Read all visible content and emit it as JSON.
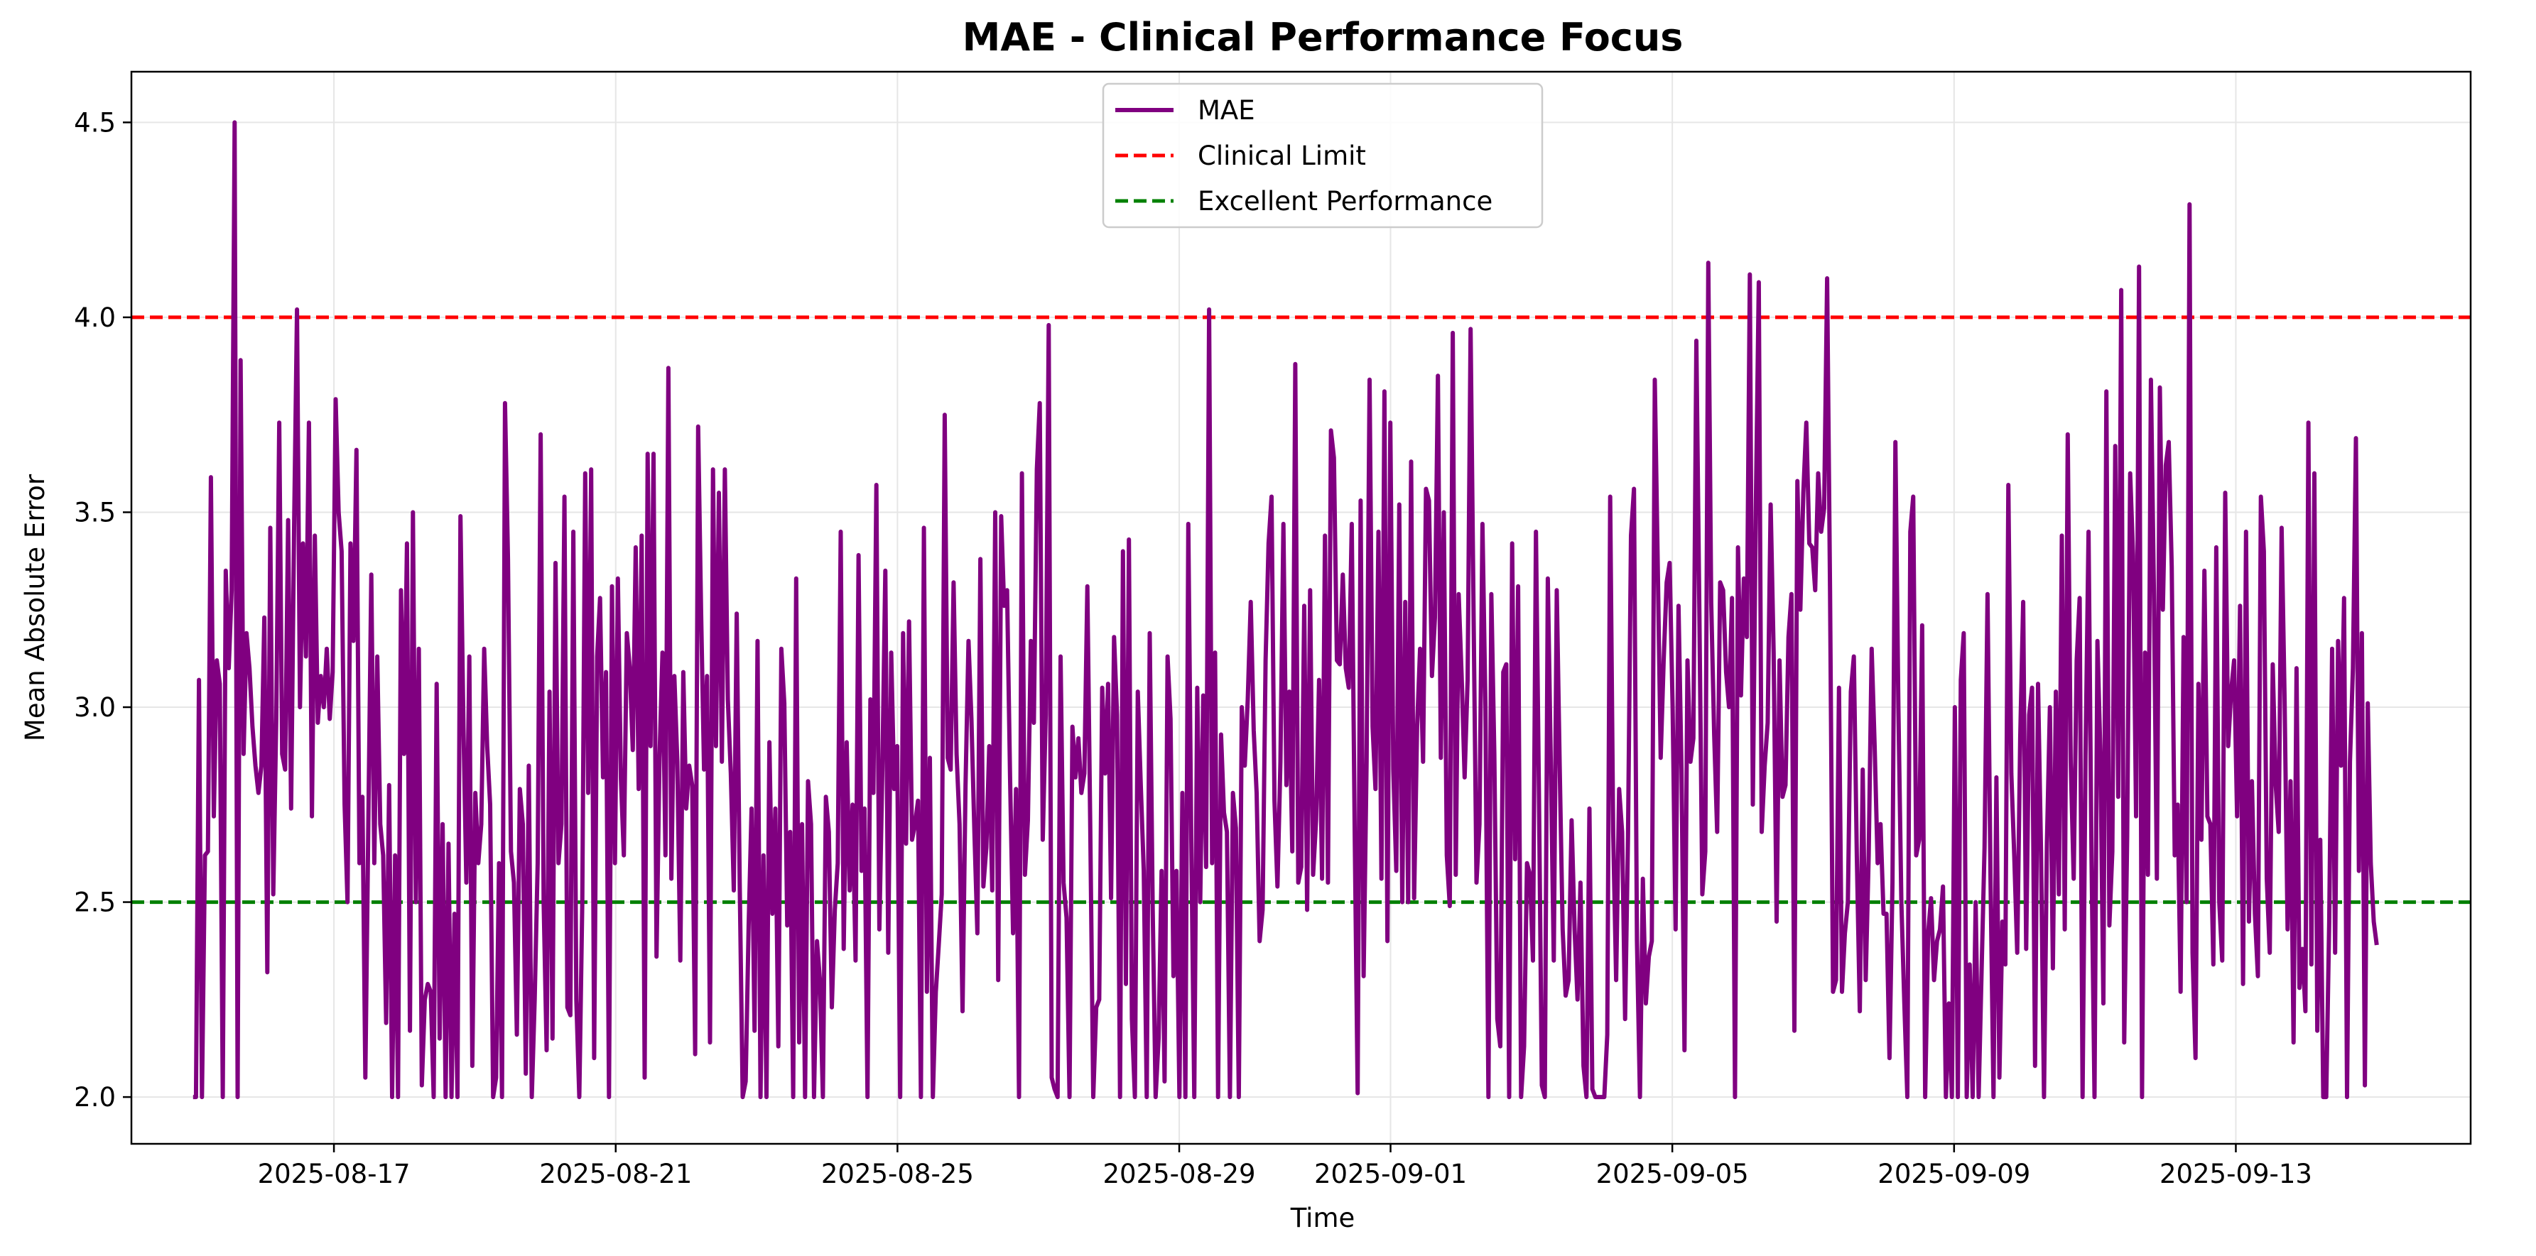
{
  "chart_data": {
    "type": "line",
    "title": "MAE - Clinical Performance Focus",
    "xlabel": "Time",
    "ylabel": "Mean Absolute Error",
    "x_start": "2025-08-15",
    "x_end": "2025-09-15",
    "xlim": [
      "2025-08-14T03:00",
      "2025-09-16T08:00"
    ],
    "ylim": [
      1.88,
      4.63
    ],
    "x_ticks": [
      "2025-08-17",
      "2025-08-21",
      "2025-08-25",
      "2025-08-29",
      "2025-09-01",
      "2025-09-05",
      "2025-09-09",
      "2025-09-13"
    ],
    "y_ticks": [
      "2.0",
      "2.5",
      "3.0",
      "3.5",
      "4.0",
      "4.5"
    ],
    "grid": true,
    "legend_position": "top-center",
    "colors": {
      "mae": "#800080",
      "clinical_limit": "#ff0000",
      "excellent": "#008000"
    },
    "series": [
      {
        "name": "MAE",
        "style": "solid",
        "values": [
          2.0,
          2.0,
          3.07,
          2.0,
          2.62,
          2.63,
          3.59,
          2.72,
          3.12,
          3.06,
          2.0,
          3.35,
          3.1,
          3.3,
          4.5,
          2.0,
          3.89,
          2.88,
          3.19,
          3.1,
          2.95,
          2.85,
          2.78,
          2.85,
          3.23,
          2.32,
          3.46,
          2.52,
          2.97,
          3.73,
          2.88,
          2.84,
          3.48,
          2.74,
          3.46,
          4.02,
          3.0,
          3.42,
          3.13,
          3.73,
          2.72,
          3.44,
          2.96,
          3.08,
          3.0,
          3.15,
          2.97,
          3.09,
          3.79,
          3.5,
          3.4,
          2.75,
          2.5,
          3.42,
          3.17,
          3.66,
          2.6,
          2.77,
          2.05,
          2.7,
          3.34,
          2.6,
          3.13,
          2.7,
          2.62,
          2.19,
          2.8,
          2.0,
          2.62,
          2.0,
          3.3,
          2.88,
          3.42,
          2.17,
          3.5,
          2.5,
          3.15,
          2.03,
          2.25,
          2.29,
          2.27,
          2.0,
          3.06,
          2.15,
          2.7,
          2.0,
          2.65,
          2.0,
          2.47,
          2.0,
          3.49,
          2.95,
          2.55,
          3.13,
          2.08,
          2.78,
          2.6,
          2.7,
          3.15,
          2.9,
          2.75,
          2.0,
          2.05,
          2.6,
          2.0,
          3.78,
          3.38,
          2.63,
          2.55,
          2.16,
          2.79,
          2.7,
          2.06,
          2.85,
          2.0,
          2.25,
          2.6,
          3.7,
          2.5,
          2.12,
          3.04,
          2.15,
          3.37,
          2.6,
          2.7,
          3.54,
          2.23,
          2.21,
          3.45,
          2.25,
          2.0,
          2.5,
          3.6,
          2.78,
          3.61,
          2.1,
          3.13,
          3.28,
          2.82,
          3.09,
          2.0,
          3.31,
          2.6,
          3.33,
          2.82,
          2.62,
          3.19,
          3.1,
          2.89,
          3.41,
          2.79,
          3.44,
          2.05,
          3.65,
          2.9,
          3.65,
          2.36,
          2.87,
          3.14,
          2.62,
          3.87,
          2.56,
          3.08,
          2.86,
          2.35,
          3.09,
          2.74,
          2.85,
          2.8,
          2.11,
          3.72,
          3.25,
          2.84,
          3.08,
          2.14,
          3.61,
          2.9,
          3.55,
          2.86,
          3.61,
          3.02,
          2.83,
          2.53,
          3.24,
          2.55,
          2.0,
          2.04,
          2.44,
          2.74,
          2.17,
          3.17,
          2.0,
          2.62,
          2.0,
          2.91,
          2.47,
          2.74,
          2.13,
          3.15,
          3.01,
          2.44,
          2.68,
          2.0,
          3.33,
          2.14,
          2.7,
          2.0,
          2.81,
          2.7,
          2.0,
          2.4,
          2.3,
          2.0,
          2.77,
          2.68,
          2.23,
          2.48,
          2.6,
          3.45,
          2.38,
          2.91,
          2.53,
          2.75,
          2.35,
          3.39,
          2.58,
          2.74,
          2.0,
          3.02,
          2.78,
          3.57,
          2.43,
          2.84,
          3.35,
          2.37,
          3.14,
          2.79,
          2.9,
          2.0,
          3.19,
          2.65,
          3.22,
          2.66,
          2.7,
          2.76,
          2.0,
          3.46,
          2.27,
          2.87,
          2.0,
          2.27,
          2.39,
          2.52,
          3.75,
          2.87,
          2.84,
          3.32,
          2.88,
          2.7,
          2.22,
          2.8,
          3.17,
          2.97,
          2.68,
          2.42,
          3.38,
          2.54,
          2.64,
          2.9,
          2.53,
          3.5,
          2.3,
          3.49,
          3.26,
          3.3,
          2.82,
          2.42,
          2.79,
          2.0,
          3.6,
          2.57,
          2.71,
          3.17,
          2.96,
          3.61,
          3.78,
          2.66,
          2.98,
          3.98,
          2.05,
          2.02,
          2.0,
          3.13,
          2.55,
          2.46,
          2.0,
          2.95,
          2.82,
          2.92,
          2.78,
          2.83,
          3.31,
          2.69,
          2.0,
          2.23,
          2.25,
          3.05,
          2.83,
          3.06,
          2.51,
          3.18,
          2.98,
          2.0,
          3.4,
          2.29,
          3.43,
          2.2,
          2.0,
          3.04,
          2.8,
          2.58,
          2.0,
          3.19,
          2.48,
          2.0,
          2.15,
          2.58,
          2.04,
          3.13,
          2.97,
          2.31,
          2.58,
          2.0,
          2.78,
          2.0,
          3.47,
          2.66,
          2.0,
          3.05,
          2.5,
          3.03,
          2.59,
          4.02,
          2.6,
          3.14,
          2.0,
          2.93,
          2.73,
          2.68,
          2.0,
          2.78,
          2.69,
          2.0,
          3.0,
          2.85,
          3.02,
          3.27,
          2.94,
          2.78,
          2.4,
          2.48,
          3.12,
          3.42,
          3.54,
          2.76,
          2.54,
          2.86,
          3.47,
          2.8,
          3.04,
          2.63,
          3.88,
          2.55,
          2.59,
          3.26,
          2.48,
          3.3,
          2.57,
          2.71,
          3.07,
          2.56,
          3.44,
          2.55,
          3.71,
          3.64,
          3.12,
          3.11,
          3.34,
          3.1,
          3.05,
          3.47,
          2.67,
          2.01,
          3.53,
          2.31,
          2.86,
          3.84,
          2.95,
          2.79,
          3.45,
          2.56,
          3.81,
          2.4,
          3.73,
          2.84,
          2.58,
          3.52,
          2.5,
          3.27,
          2.5,
          3.63,
          2.51,
          2.95,
          3.15,
          2.86,
          3.56,
          3.53,
          3.08,
          3.23,
          3.85,
          2.87,
          3.5,
          2.62,
          2.49,
          3.96,
          2.57,
          3.29,
          3.08,
          2.82,
          3.07,
          3.97,
          3.24,
          2.55,
          2.7,
          3.47,
          3.0,
          2.0,
          3.29,
          2.88,
          2.2,
          2.13,
          3.09,
          3.11,
          2.0,
          3.42,
          2.61,
          3.31,
          2.0,
          2.13,
          2.6,
          2.57,
          2.35,
          3.45,
          2.78,
          2.03,
          2.0,
          3.33,
          2.86,
          2.35,
          3.3,
          2.85,
          2.43,
          2.26,
          2.3,
          2.71,
          2.43,
          2.25,
          2.55,
          2.08,
          2.0,
          2.74,
          2.02,
          2.0,
          2.0,
          2.0,
          2.0,
          2.16,
          3.54,
          2.68,
          2.3,
          2.79,
          2.68,
          2.2,
          2.67,
          3.44,
          3.56,
          2.4,
          2.0,
          2.56,
          2.24,
          2.36,
          2.4,
          3.84,
          3.36,
          2.87,
          3.12,
          3.32,
          3.37,
          3.0,
          2.43,
          3.26,
          2.84,
          2.12,
          3.12,
          2.86,
          2.92,
          3.94,
          3.25,
          2.52,
          2.63,
          4.14,
          3.27,
          2.93,
          2.68,
          3.32,
          3.3,
          3.09,
          3.0,
          3.28,
          2.0,
          3.41,
          3.03,
          3.33,
          3.18,
          4.11,
          2.75,
          3.51,
          4.09,
          2.68,
          2.85,
          2.96,
          3.52,
          3.14,
          2.45,
          3.12,
          2.77,
          2.8,
          3.18,
          3.29,
          2.17,
          3.58,
          3.25,
          3.55,
          3.73,
          3.42,
          3.41,
          3.3,
          3.6,
          3.45,
          3.51,
          4.1,
          3.3,
          2.27,
          2.3,
          3.05,
          2.27,
          2.42,
          2.5,
          3.04,
          3.13,
          2.62,
          2.22,
          2.84,
          2.3,
          2.62,
          3.15,
          2.9,
          2.6,
          2.7,
          2.47,
          2.47,
          2.1,
          2.55,
          3.68,
          3.0,
          2.5,
          2.24,
          2.0,
          3.45,
          3.54,
          2.62,
          2.66,
          3.21,
          2.0,
          2.42,
          2.51,
          2.3,
          2.4,
          2.43,
          2.54,
          2.0,
          2.24,
          2.0,
          3.0,
          2.0,
          3.07,
          3.19,
          2.0,
          2.34,
          2.0,
          2.5,
          2.0,
          2.32,
          2.64,
          3.29,
          2.56,
          2.0,
          2.82,
          2.05,
          2.45,
          2.34,
          3.57,
          2.83,
          2.62,
          2.37,
          2.92,
          3.27,
          2.38,
          2.98,
          3.05,
          2.08,
          3.06,
          2.63,
          2.0,
          2.65,
          3.0,
          2.33,
          3.04,
          2.52,
          3.44,
          2.43,
          3.7,
          2.86,
          2.56,
          3.12,
          3.28,
          2.0,
          2.88,
          3.45,
          2.61,
          2.0,
          3.17,
          2.88,
          2.24,
          3.81,
          2.44,
          2.63,
          3.67,
          2.77,
          4.07,
          2.14,
          2.67,
          3.6,
          3.39,
          2.72,
          4.13,
          2.0,
          3.14,
          2.57,
          3.84,
          3.3,
          2.56,
          3.82,
          3.25,
          3.62,
          3.68,
          3.36,
          2.62,
          2.75,
          2.27,
          3.18,
          2.5,
          4.29,
          2.37,
          2.1,
          3.06,
          2.66,
          3.35,
          2.72,
          2.7,
          2.34,
          3.41,
          2.5,
          2.35,
          3.55,
          2.9,
          3.04,
          3.12,
          2.72,
          3.26,
          2.29,
          3.45,
          2.45,
          2.81,
          2.47,
          2.31,
          3.54,
          3.4,
          2.56,
          2.37,
          3.11,
          2.8,
          2.68,
          3.46,
          3.02,
          2.43,
          2.81,
          2.14,
          3.1,
          2.28,
          2.38,
          2.22,
          3.73,
          2.34,
          3.6,
          2.17,
          2.66,
          2.0,
          2.0,
          2.45,
          3.15,
          2.37,
          3.17,
          2.85,
          3.28,
          2.0,
          2.86,
          3.1,
          3.69,
          2.58,
          3.19,
          2.03,
          3.01,
          2.6,
          2.45,
          2.39
        ]
      },
      {
        "name": "Clinical Limit",
        "style": "dashed",
        "values": [
          4.0
        ]
      },
      {
        "name": "Excellent Performance",
        "style": "dashed",
        "values": [
          2.5
        ]
      }
    ]
  }
}
